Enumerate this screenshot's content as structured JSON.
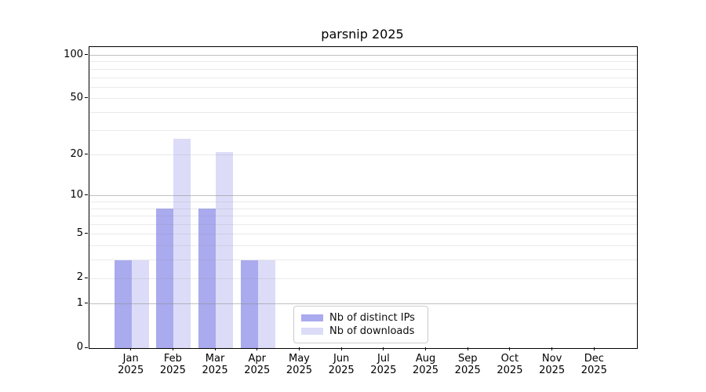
{
  "figure": {
    "title": "parsnip 2025"
  },
  "chart_data": {
    "type": "bar",
    "title": "parsnip 2025",
    "y_scale": "log1p",
    "ylim": [
      0,
      114
    ],
    "grid": true,
    "legend_position": "lower center",
    "categories": [
      "Jan",
      "Feb",
      "Mar",
      "Apr",
      "May",
      "Jun",
      "Jul",
      "Aug",
      "Sep",
      "Oct",
      "Nov",
      "Dec"
    ],
    "x_year_label": "2025",
    "series": [
      {
        "name": "Nb of distinct IPs",
        "color": "#aaaaef",
        "values": [
          3,
          8,
          8,
          3,
          0,
          0,
          0,
          0,
          0,
          0,
          0,
          0
        ]
      },
      {
        "name": "Nb of downloads",
        "color": "#dcdcf8",
        "values": [
          3,
          26,
          21,
          3,
          0,
          0,
          0,
          0,
          0,
          0,
          0,
          0
        ]
      }
    ],
    "y_tick_labels": [
      0,
      1,
      2,
      5,
      10,
      20,
      50,
      100
    ],
    "y_major_gridlines": [
      1,
      10,
      100
    ],
    "y_minor_gridlines": [
      2,
      3,
      4,
      5,
      6,
      7,
      8,
      9,
      20,
      30,
      40,
      50,
      60,
      70,
      80,
      90
    ]
  },
  "colors": {
    "background": "#ffffff",
    "spine": "#000000",
    "bar_distinct_ips": "#aaaaef",
    "bar_downloads": "#dcdcf8",
    "legend_border": "#cccccc",
    "text": "#000000"
  }
}
